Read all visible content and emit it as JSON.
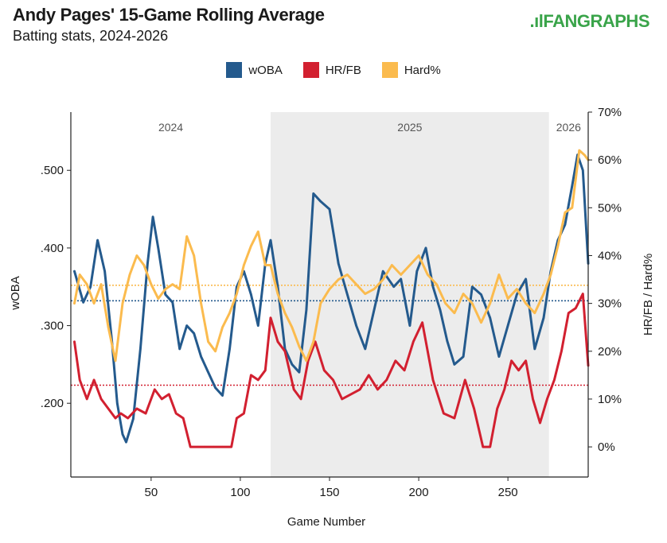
{
  "header": {
    "title": "Andy Pages' 15-Game Rolling Average",
    "subtitle": "Batting stats, 2024-2026",
    "logo": "FANGRAPHS"
  },
  "colors": {
    "woba": "#245a8d",
    "hrfb": "#d22030",
    "hard": "#fbbb4e",
    "shade": "#ececec",
    "logo": "#3aa44a"
  },
  "chart_data": {
    "type": "line",
    "x_label": "Game Number",
    "y_left_label": "wOBA",
    "y_right_label": "HR/FB / Hard%",
    "x_ticks": [
      50,
      100,
      150,
      200,
      250
    ],
    "x_range": [
      5,
      295
    ],
    "y_left_range": [
      0.105,
      0.575
    ],
    "y_left_ticks": [
      {
        "v": 0.2,
        "label": ".200"
      },
      {
        "v": 0.3,
        "label": ".300"
      },
      {
        "v": 0.4,
        "label": ".400"
      },
      {
        "v": 0.5,
        "label": ".500"
      }
    ],
    "y_right_range": [
      -0.063,
      0.7
    ],
    "y_right_ticks": [
      {
        "v": 0.0,
        "label": "0%"
      },
      {
        "v": 0.1,
        "label": "10%"
      },
      {
        "v": 0.2,
        "label": "20%"
      },
      {
        "v": 0.3,
        "label": "30%"
      },
      {
        "v": 0.4,
        "label": "40%"
      },
      {
        "v": 0.5,
        "label": "50%"
      },
      {
        "v": 0.6,
        "label": "60%"
      },
      {
        "v": 0.7,
        "label": "70%"
      }
    ],
    "periods": [
      {
        "label": "2024",
        "start": 5,
        "end": 117,
        "shaded": false
      },
      {
        "label": "2025",
        "start": 117,
        "end": 273,
        "shaded": true
      },
      {
        "label": "2026",
        "start": 273,
        "end": 295,
        "shaded": false
      }
    ],
    "reference_lines": [
      {
        "series": "Hard%",
        "axis": "right",
        "value": 0.338
      },
      {
        "series": "wOBA",
        "axis": "left",
        "value": 0.332
      },
      {
        "series": "HR/FB",
        "axis": "right",
        "value": 0.129
      }
    ],
    "series": [
      {
        "name": "wOBA",
        "axis": "left",
        "x": [
          7,
          12,
          16,
          20,
          24,
          28,
          31,
          34,
          36,
          40,
          44,
          48,
          51,
          54,
          58,
          62,
          66,
          70,
          74,
          78,
          82,
          86,
          90,
          94,
          98,
          102,
          106,
          110,
          114,
          117,
          121,
          125,
          129,
          133,
          137,
          141,
          145,
          150,
          155,
          160,
          165,
          170,
          175,
          180,
          186,
          190,
          195,
          199,
          204,
          208,
          212,
          216,
          220,
          225,
          230,
          235,
          240,
          245,
          250,
          255,
          260,
          265,
          270,
          274,
          278,
          282,
          286,
          289,
          292,
          295
        ],
        "y": [
          0.37,
          0.33,
          0.35,
          0.41,
          0.37,
          0.28,
          0.2,
          0.16,
          0.15,
          0.18,
          0.27,
          0.38,
          0.44,
          0.4,
          0.34,
          0.33,
          0.27,
          0.3,
          0.29,
          0.26,
          0.24,
          0.22,
          0.21,
          0.27,
          0.35,
          0.37,
          0.34,
          0.3,
          0.38,
          0.41,
          0.35,
          0.27,
          0.25,
          0.24,
          0.32,
          0.47,
          0.46,
          0.45,
          0.38,
          0.34,
          0.3,
          0.27,
          0.32,
          0.37,
          0.35,
          0.36,
          0.3,
          0.37,
          0.4,
          0.35,
          0.32,
          0.28,
          0.25,
          0.26,
          0.35,
          0.34,
          0.31,
          0.26,
          0.3,
          0.34,
          0.36,
          0.27,
          0.31,
          0.37,
          0.41,
          0.43,
          0.48,
          0.52,
          0.5,
          0.38
        ]
      },
      {
        "name": "HR/FB",
        "axis": "right",
        "x": [
          7,
          10,
          14,
          18,
          22,
          26,
          30,
          33,
          37,
          42,
          47,
          52,
          56,
          60,
          64,
          68,
          72,
          76,
          80,
          85,
          90,
          95,
          98,
          102,
          106,
          110,
          114,
          117,
          121,
          125,
          130,
          134,
          138,
          142,
          147,
          152,
          157,
          162,
          167,
          172,
          177,
          182,
          187,
          192,
          197,
          202,
          208,
          214,
          220,
          226,
          231,
          236,
          240,
          244,
          248,
          252,
          256,
          260,
          264,
          268,
          272,
          276,
          280,
          284,
          288,
          292,
          295
        ],
        "y": [
          0.22,
          0.14,
          0.1,
          0.14,
          0.1,
          0.08,
          0.06,
          0.07,
          0.06,
          0.08,
          0.07,
          0.12,
          0.1,
          0.11,
          0.07,
          0.06,
          0.0,
          0.0,
          0.0,
          0.0,
          0.0,
          0.0,
          0.06,
          0.07,
          0.15,
          0.14,
          0.16,
          0.27,
          0.22,
          0.2,
          0.12,
          0.1,
          0.18,
          0.22,
          0.16,
          0.14,
          0.1,
          0.11,
          0.12,
          0.15,
          0.12,
          0.14,
          0.18,
          0.16,
          0.22,
          0.26,
          0.14,
          0.07,
          0.06,
          0.14,
          0.08,
          0.0,
          0.0,
          0.08,
          0.12,
          0.18,
          0.16,
          0.18,
          0.1,
          0.05,
          0.1,
          0.14,
          0.2,
          0.28,
          0.29,
          0.32,
          0.17
        ]
      },
      {
        "name": "Hard%",
        "axis": "right",
        "x": [
          7,
          10,
          14,
          18,
          22,
          26,
          30,
          34,
          38,
          42,
          46,
          50,
          54,
          58,
          62,
          66,
          70,
          74,
          78,
          82,
          86,
          90,
          94,
          98,
          102,
          106,
          110,
          114,
          117,
          121,
          125,
          129,
          133,
          137,
          141,
          145,
          150,
          155,
          160,
          165,
          170,
          175,
          180,
          185,
          190,
          195,
          200,
          205,
          210,
          215,
          220,
          225,
          230,
          235,
          240,
          245,
          250,
          255,
          260,
          265,
          270,
          274,
          278,
          282,
          286,
          290,
          293,
          295
        ],
        "y": [
          0.3,
          0.36,
          0.34,
          0.3,
          0.34,
          0.25,
          0.18,
          0.3,
          0.36,
          0.4,
          0.38,
          0.34,
          0.31,
          0.33,
          0.34,
          0.33,
          0.44,
          0.4,
          0.3,
          0.22,
          0.2,
          0.25,
          0.28,
          0.32,
          0.38,
          0.42,
          0.45,
          0.38,
          0.38,
          0.32,
          0.28,
          0.25,
          0.21,
          0.18,
          0.22,
          0.3,
          0.33,
          0.35,
          0.36,
          0.34,
          0.32,
          0.33,
          0.35,
          0.38,
          0.36,
          0.38,
          0.4,
          0.36,
          0.34,
          0.3,
          0.28,
          0.32,
          0.3,
          0.26,
          0.3,
          0.36,
          0.31,
          0.33,
          0.3,
          0.28,
          0.32,
          0.36,
          0.42,
          0.49,
          0.5,
          0.62,
          0.61,
          0.6
        ]
      }
    ]
  }
}
